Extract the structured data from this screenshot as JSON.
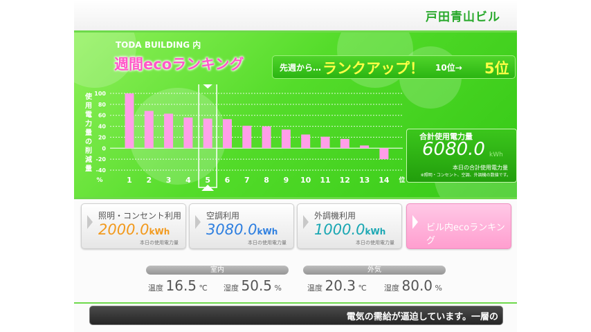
{
  "building_name": "戸田青山ビル",
  "header": {
    "subtitle": "TODA BUILDING 内",
    "title": "週間ecoランキング"
  },
  "rank_box": {
    "from_label": "先週から…",
    "status": "ランクアップ！",
    "previous": "10位→",
    "current": "5位"
  },
  "chart_data": {
    "type": "bar",
    "categories": [
      "1",
      "2",
      "3",
      "4",
      "5",
      "6",
      "7",
      "8",
      "9",
      "10",
      "11",
      "12",
      "13",
      "14"
    ],
    "values": [
      100,
      68,
      63,
      56,
      54,
      53,
      41,
      40,
      34,
      25,
      21,
      17,
      5,
      -20
    ],
    "ylabel": "使用電力量の削減量",
    "y_unit": "%",
    "x_unit": "位",
    "y_ticks": [
      "100",
      "80",
      "60",
      "40",
      "20",
      "0",
      "-20",
      "-40"
    ],
    "ylim": [
      -40,
      100
    ],
    "highlight_rank": 5,
    "bar_color": "#ff9ee8"
  },
  "total": {
    "label": "合計使用電力量",
    "value": "6080.0",
    "unit": "kWh",
    "caption": "本日の合計使用電力量",
    "note": "※照明・コンセント、空調、外調機の数値です。"
  },
  "cards": [
    {
      "label": "照明・コンセント利用",
      "value": "2000.0",
      "unit": "kWh",
      "caption": "本日の使用電力量",
      "color": "#f29a1e"
    },
    {
      "label": "空調利用",
      "value": "3080.0",
      "unit": "kWh",
      "caption": "本日の使用電力量",
      "color": "#2e7fe0"
    },
    {
      "label": "外調機利用",
      "value": "1000.0",
      "unit": "kWh",
      "caption": "本日の使用電力量",
      "color": "#1aa7b3"
    }
  ],
  "ranking_button": {
    "label": "ビル内ecoランキング"
  },
  "indoor": {
    "label": "室内",
    "temp_label": "温度",
    "temp": "16.5",
    "temp_unit": "℃",
    "hum_label": "湿度",
    "hum": "50.5",
    "hum_unit": "%"
  },
  "outdoor": {
    "label": "外気",
    "temp_label": "温度",
    "temp": "20.3",
    "temp_unit": "℃",
    "hum_label": "湿度",
    "hum": "80.0",
    "hum_unit": "%"
  },
  "ticker": {
    "text": "電気の需給が逼迫しています。一層の"
  }
}
